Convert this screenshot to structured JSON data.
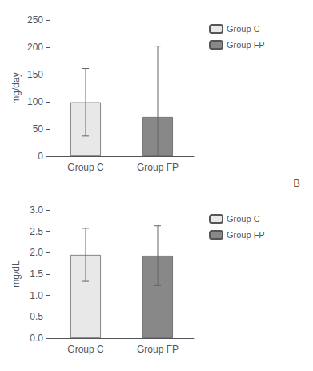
{
  "chart_data": [
    {
      "type": "bar",
      "categories": [
        "Group C",
        "Group FP"
      ],
      "series": [
        {
          "name": "Group C",
          "color": "#e8e8e8",
          "values": [
            99,
            null
          ],
          "errors_up": [
            62,
            null
          ],
          "errors_down": [
            62,
            null
          ]
        },
        {
          "name": "Group FP",
          "color": "#888888",
          "values": [
            null,
            72
          ],
          "errors_up": [
            null,
            130
          ],
          "errors_down": [
            null,
            72
          ]
        }
      ],
      "ylabel": "mg/day",
      "ylim": [
        0,
        250
      ],
      "yticks": [
        0,
        50,
        100,
        150,
        200,
        250
      ],
      "grid": false,
      "legend": "right"
    },
    {
      "type": "bar",
      "categories": [
        "Group C",
        "Group FP"
      ],
      "series": [
        {
          "name": "Group C",
          "color": "#e8e8e8",
          "values": [
            1.95,
            null
          ],
          "errors_up": [
            0.62,
            null
          ],
          "errors_down": [
            0.62,
            null
          ]
        },
        {
          "name": "Group FP",
          "color": "#888888",
          "values": [
            null,
            1.93
          ],
          "errors_up": [
            null,
            0.7
          ],
          "errors_down": [
            null,
            0.7
          ]
        }
      ],
      "ylabel": "mg/dL",
      "ylim": [
        0,
        3
      ],
      "yticks": [
        {
          "value": 0,
          "label": "0.0"
        },
        0.5,
        {
          "value": 1,
          "label": "1.0"
        },
        1.5,
        {
          "value": 2,
          "label": "2.0"
        },
        2.5,
        {
          "value": 3,
          "label": "3.0"
        }
      ],
      "grid": false,
      "legend": "right",
      "annotation": "B"
    }
  ]
}
